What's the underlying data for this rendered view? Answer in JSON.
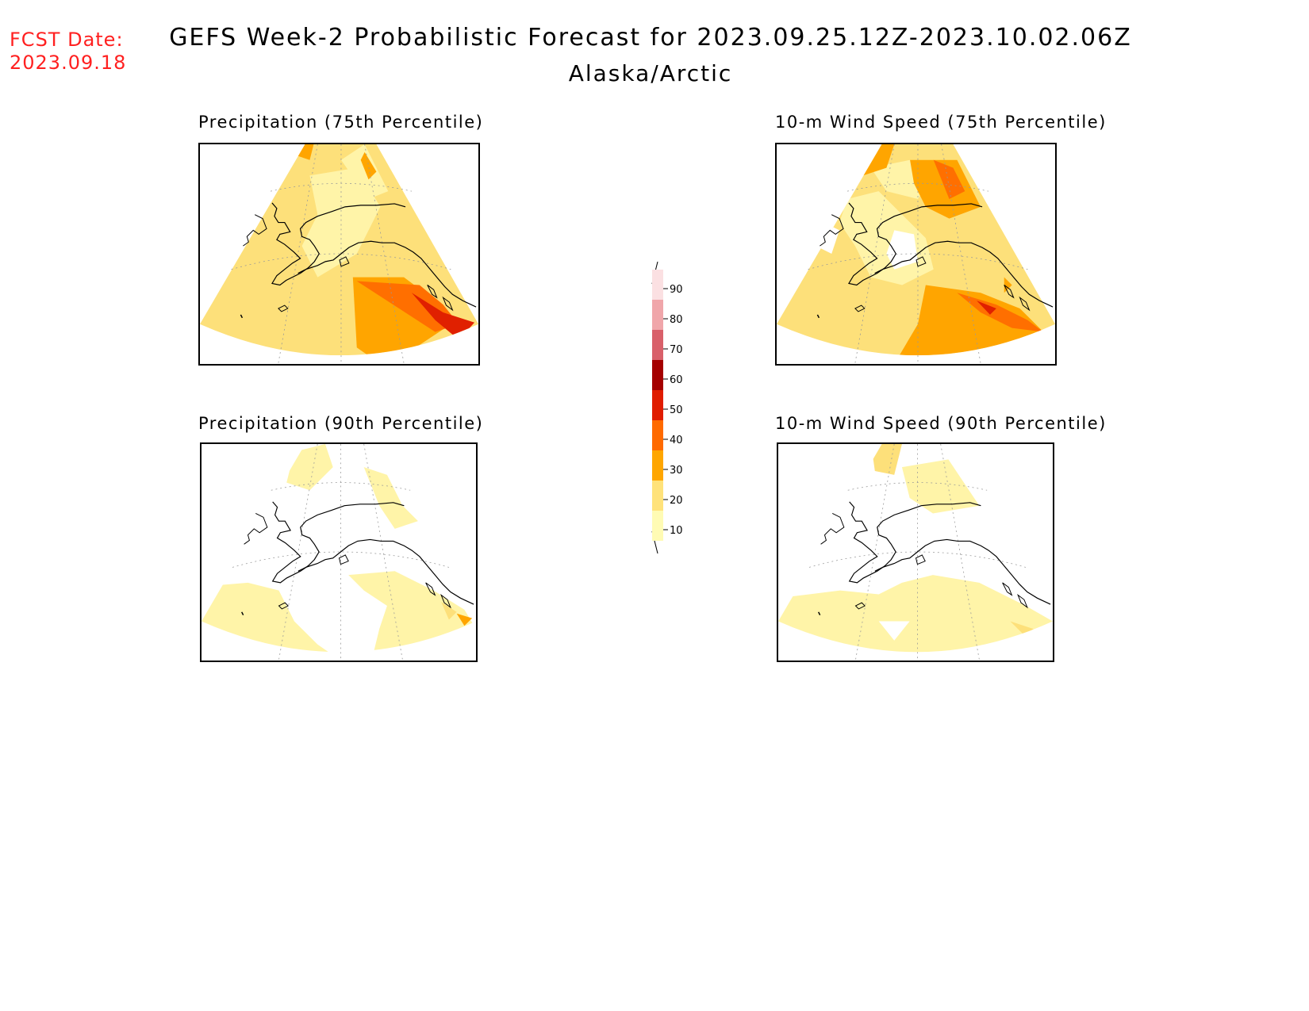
{
  "header": {
    "fcst_label": "FCST Date:",
    "fcst_date": "2023.09.18",
    "title": "GEFS Week-2 Probabilistic Forecast for 2023.09.25.12Z-2023.10.02.06Z",
    "subtitle": "Alaska/Arctic"
  },
  "panels": [
    {
      "id": "p75",
      "title": "Precipitation (75th Percentile)"
    },
    {
      "id": "w75",
      "title": "10-m Wind Speed (75th Percentile)"
    },
    {
      "id": "p90",
      "title": "Precipitation (90th Percentile)"
    },
    {
      "id": "w90",
      "title": "10-m Wind Speed (90th Percentile)"
    }
  ],
  "legend": {
    "levels": [
      "10",
      "20",
      "30",
      "40",
      "50",
      "60",
      "70",
      "80",
      "90"
    ],
    "colors": [
      "#fffbb4",
      "#ffe27a",
      "#ffa600",
      "#ff6a00",
      "#e01c00",
      "#a50000",
      "#d9606a",
      "#f0a6aa",
      "#fbe0e2"
    ]
  },
  "colors": {
    "prob_10_20": "#fff4a8",
    "prob_20_30": "#fde07a",
    "prob_30_40": "#ffa500",
    "prob_40_50": "#ff6f00",
    "prob_50_60": "#e02000",
    "prob_60_70": "#a80000",
    "fcst_date": "#ff2020"
  }
}
